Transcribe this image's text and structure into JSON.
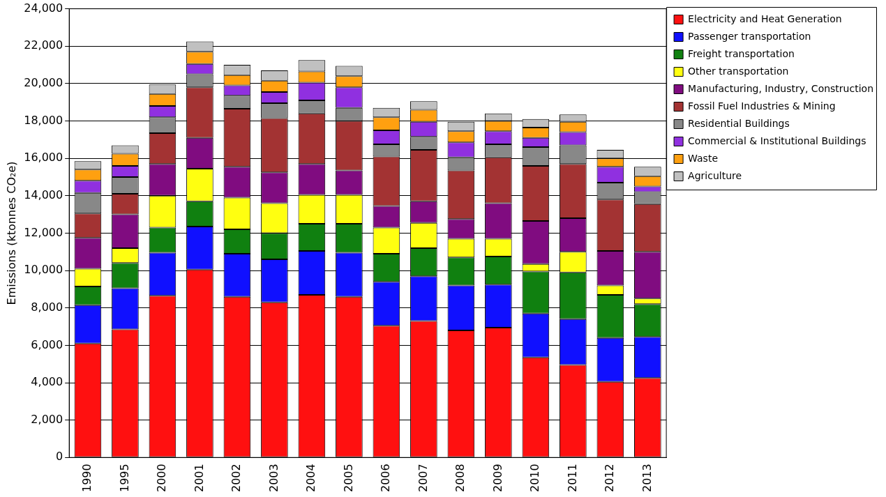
{
  "chart_data": {
    "type": "bar",
    "stacked": true,
    "ylabel": "Emissions (ktonnes CO₂e)",
    "categories": [
      "1990",
      "1995",
      "2000",
      "2001",
      "2002",
      "2003",
      "2004",
      "2005",
      "2006",
      "2007",
      "2008",
      "2009",
      "2010",
      "2011",
      "2012",
      "2013"
    ],
    "ylim": [
      0,
      24000
    ],
    "yticks": [
      {
        "value": 0,
        "label": "0"
      },
      {
        "value": 2000,
        "label": "2,000"
      },
      {
        "value": 4000,
        "label": "4,000"
      },
      {
        "value": 6000,
        "label": "6,000"
      },
      {
        "value": 8000,
        "label": "8,000"
      },
      {
        "value": 10000,
        "label": "10,000"
      },
      {
        "value": 12000,
        "label": "12,000"
      },
      {
        "value": 14000,
        "label": "14,000"
      },
      {
        "value": 16000,
        "label": "16,000"
      },
      {
        "value": 18000,
        "label": "18,000"
      },
      {
        "value": 20000,
        "label": "20,000"
      },
      {
        "value": 22000,
        "label": "22,000"
      },
      {
        "value": 24000,
        "label": "24,000"
      }
    ],
    "grid": "y",
    "legend": "right",
    "series": [
      {
        "name": "Electricity and Heat Generation",
        "color": "#ff1010",
        "values": [
          6100,
          6850,
          8650,
          10050,
          8600,
          8300,
          8700,
          8600,
          7050,
          7300,
          6800,
          6950,
          5350,
          4950,
          4050,
          4250
        ]
      },
      {
        "name": "Passenger transportation",
        "color": "#1010ff",
        "values": [
          2050,
          2200,
          2300,
          2300,
          2300,
          2300,
          2350,
          2350,
          2350,
          2400,
          2400,
          2300,
          2350,
          2450,
          2350,
          2200
        ]
      },
      {
        "name": "Freight transportation",
        "color": "#108010",
        "values": [
          1000,
          1350,
          1350,
          1350,
          1300,
          1400,
          1450,
          1550,
          1500,
          1500,
          1500,
          1500,
          2250,
          2500,
          2300,
          1750
        ]
      },
      {
        "name": "Other transportation",
        "color": "#ffff10",
        "values": [
          950,
          800,
          1700,
          1750,
          1700,
          1600,
          1550,
          1550,
          1400,
          1350,
          1000,
          950,
          400,
          1100,
          500,
          300
        ]
      },
      {
        "name": "Manufacturing, Industry, Construction",
        "color": "#800c80",
        "values": [
          1650,
          1800,
          1700,
          1650,
          1650,
          1650,
          1650,
          1300,
          1150,
          1150,
          1050,
          1900,
          2300,
          1800,
          1850,
          2500
        ]
      },
      {
        "name": "Fossil Fuel Industries & Mining",
        "color": "#a33333",
        "values": [
          1300,
          1100,
          1650,
          2700,
          3100,
          2900,
          2700,
          2650,
          2650,
          2750,
          2600,
          2450,
          2950,
          2900,
          2750,
          2550
        ]
      },
      {
        "name": "Residential Buildings",
        "color": "#888888",
        "values": [
          1100,
          900,
          850,
          700,
          700,
          800,
          700,
          700,
          650,
          700,
          700,
          700,
          1000,
          1000,
          900,
          650
        ]
      },
      {
        "name": "Commercial & Institutional Buildings",
        "color": "#9030e0",
        "values": [
          650,
          600,
          600,
          550,
          550,
          600,
          950,
          1100,
          750,
          800,
          800,
          700,
          500,
          700,
          850,
          300
        ]
      },
      {
        "name": "Waste",
        "color": "#ffa010",
        "values": [
          600,
          650,
          650,
          650,
          550,
          600,
          600,
          600,
          700,
          650,
          600,
          550,
          550,
          550,
          450,
          550
        ]
      },
      {
        "name": "Agriculture",
        "color": "#c0c0c0",
        "values": [
          450,
          450,
          500,
          550,
          550,
          550,
          600,
          550,
          500,
          450,
          500,
          400,
          450,
          400,
          450,
          500
        ]
      }
    ]
  }
}
